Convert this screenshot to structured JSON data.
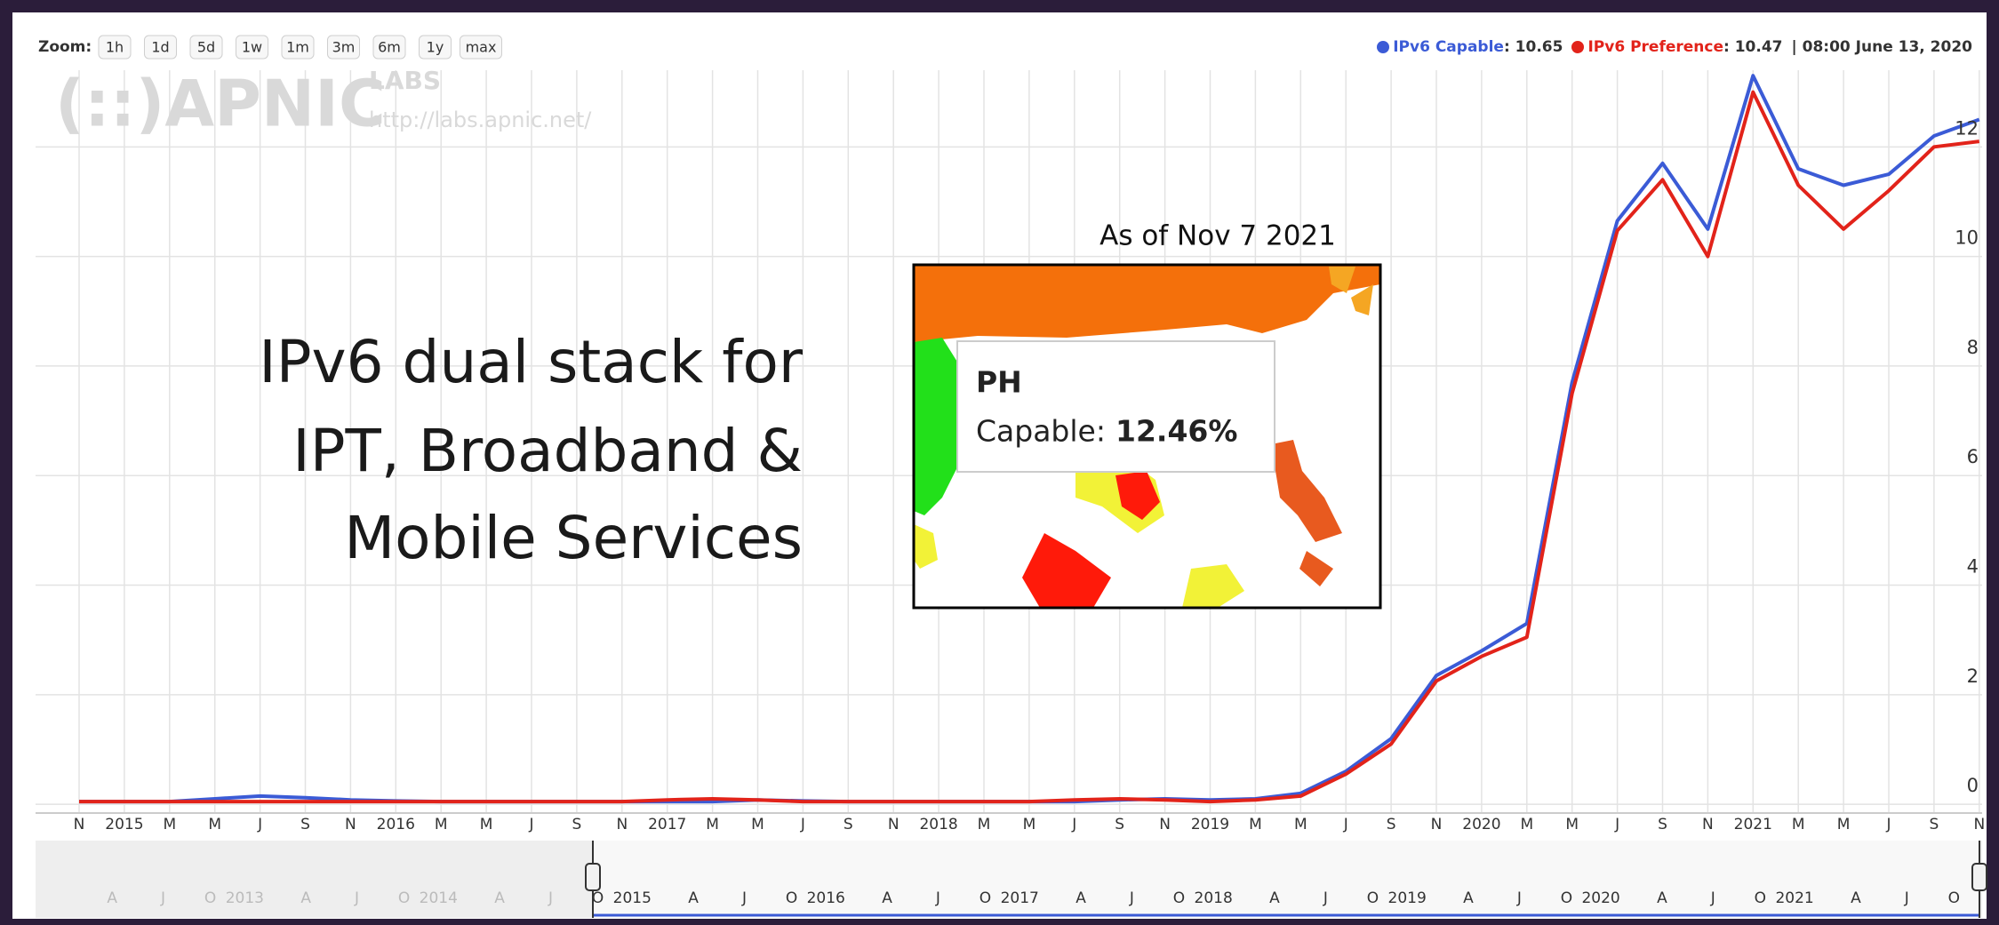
{
  "chart_data": {
    "type": "line",
    "zoom_label": "Zoom:",
    "zoom_buttons": [
      "1h",
      "1d",
      "5d",
      "1w",
      "1m",
      "3m",
      "6m",
      "1y",
      "max"
    ],
    "readouts": [
      ": 10.65",
      ": 10.47"
    ],
    "readout_time": "| 08:00 June 13, 2020",
    "logo": {
      "name": "(::)APNIC",
      "labs": "LABS",
      "url": "http://labs.apnic.net/"
    },
    "annotation": [
      "IPv6 dual stack for",
      "IPT, Broadband &",
      "Mobile Services"
    ],
    "inset": {
      "caption": "As of  Nov 7 2021",
      "country": "PH",
      "label": "Capable:",
      "value": "12.46%"
    },
    "categories": [
      "N",
      "2015",
      "M",
      "M",
      "J",
      "S",
      "N",
      "2016",
      "M",
      "M",
      "J",
      "S",
      "N",
      "2017",
      "M",
      "M",
      "J",
      "S",
      "N",
      "2018",
      "M",
      "M",
      "J",
      "S",
      "N",
      "2019",
      "M",
      "M",
      "J",
      "S",
      "N",
      "2020",
      "M",
      "M",
      "J",
      "S",
      "N",
      "2021",
      "M",
      "M",
      "J",
      "S",
      "N"
    ],
    "series": [
      {
        "name": "IPv6 Capable",
        "color": "#3b5bd6",
        "values": [
          0.05,
          0.05,
          0.05,
          0.1,
          0.15,
          0.12,
          0.08,
          0.06,
          0.05,
          0.05,
          0.05,
          0.05,
          0.05,
          0.05,
          0.05,
          0.08,
          0.06,
          0.05,
          0.05,
          0.05,
          0.05,
          0.05,
          0.05,
          0.08,
          0.1,
          0.08,
          0.1,
          0.2,
          0.6,
          1.2,
          2.35,
          2.8,
          3.3,
          7.7,
          10.65,
          11.7,
          10.5,
          13.3,
          11.6,
          11.3,
          11.5,
          12.2,
          12.5
        ]
      },
      {
        "name": "IPv6 Preference",
        "color": "#e2231a",
        "values": [
          0.05,
          0.05,
          0.05,
          0.05,
          0.05,
          0.05,
          0.05,
          0.05,
          0.05,
          0.05,
          0.05,
          0.05,
          0.05,
          0.08,
          0.1,
          0.08,
          0.05,
          0.05,
          0.05,
          0.05,
          0.05,
          0.05,
          0.08,
          0.1,
          0.08,
          0.05,
          0.08,
          0.15,
          0.55,
          1.1,
          2.25,
          2.7,
          3.05,
          7.5,
          10.47,
          11.4,
          10.0,
          13.0,
          11.3,
          10.5,
          11.2,
          12.0,
          12.1
        ]
      }
    ],
    "ylim": [
      -0.16,
      13.4
    ],
    "yticks": [
      0,
      2,
      4,
      6,
      8,
      10,
      12
    ],
    "grid": true,
    "navigator_labels": [
      "A",
      "J",
      "O",
      "2013",
      "A",
      "J",
      "O",
      "2014",
      "A",
      "J",
      "O",
      "2015",
      "A",
      "J",
      "O",
      "2016",
      "A",
      "J",
      "O",
      "2017",
      "A",
      "J",
      "O",
      "2018",
      "A",
      "J",
      "O",
      "2019",
      "A",
      "J",
      "O",
      "2020",
      "A",
      "J",
      "O",
      "2021",
      "A",
      "J",
      "O"
    ]
  }
}
